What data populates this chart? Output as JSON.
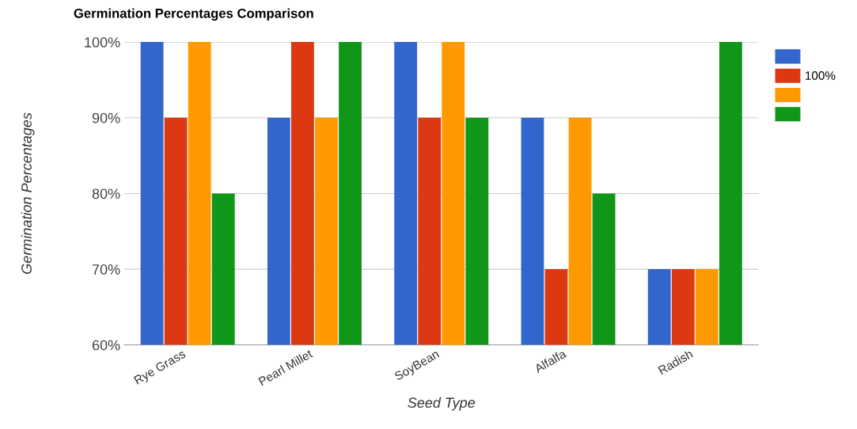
{
  "chart_data": {
    "type": "bar",
    "title": "Germination Percentages Comparison",
    "xlabel": "Seed Type",
    "ylabel": "Germination Percentages",
    "categories": [
      "Rye Grass",
      "Pearl Millet",
      "SoyBean",
      "Alfalfa",
      "Radish"
    ],
    "series": [
      {
        "color": "#3366cc",
        "values": [
          100,
          90,
          100,
          90,
          70
        ]
      },
      {
        "name": "100%",
        "color": "#dc3912",
        "values": [
          90,
          100,
          90,
          70,
          70
        ]
      },
      {
        "color": "#ff9900",
        "values": [
          100,
          90,
          100,
          90,
          70
        ]
      },
      {
        "color": "#109618",
        "values": [
          80,
          100,
          90,
          80,
          100
        ]
      }
    ],
    "ylim": [
      60,
      100
    ],
    "yticks": [
      {
        "value": 60,
        "label": "60%"
      },
      {
        "value": 70,
        "label": "70%"
      },
      {
        "value": 80,
        "label": "80%"
      },
      {
        "value": 90,
        "label": "90%"
      },
      {
        "value": 100,
        "label": "100%"
      }
    ],
    "grid": "y",
    "legend": "top right"
  }
}
